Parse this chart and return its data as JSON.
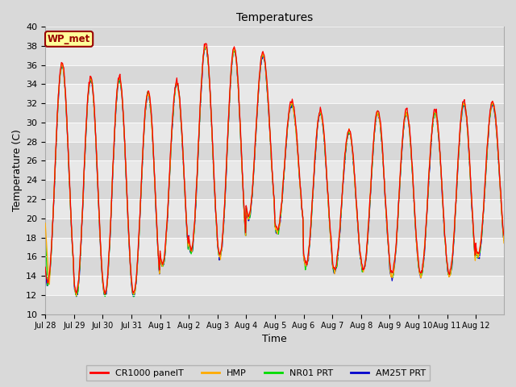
{
  "title": "Temperatures",
  "xlabel": "Time",
  "ylabel": "Temperature (C)",
  "ylim": [
    10,
    40
  ],
  "yticks": [
    10,
    12,
    14,
    16,
    18,
    20,
    22,
    24,
    26,
    28,
    30,
    32,
    34,
    36,
    38,
    40
  ],
  "bg_color": "#d9d9d9",
  "plot_bg": "#e8e8e8",
  "legend_labels": [
    "CR1000 panelT",
    "HMP",
    "NR01 PRT",
    "AM25T PRT"
  ],
  "legend_colors": [
    "#ff0000",
    "#ffaa00",
    "#00dd00",
    "#0000cc"
  ],
  "wp_met_label": "WP_met",
  "wp_met_bg": "#ffff99",
  "wp_met_border": "#990000",
  "x_tick_labels": [
    "Jul 28",
    "Jul 29",
    "Jul 30",
    "Jul 31",
    "Aug 1",
    "Aug 2",
    "Aug 3",
    "Aug 4",
    "Aug 5",
    "Aug 6",
    "Aug 7",
    "Aug 8",
    "Aug 9",
    "Aug 10",
    "Aug 11",
    "Aug 12"
  ],
  "peaks": [
    36.0,
    34.5,
    34.5,
    33.0,
    34.0,
    38.0,
    37.5,
    37.0,
    32.0,
    31.0,
    29.0,
    31.0,
    31.0,
    31.0,
    32.0,
    32.0
  ],
  "troughs": [
    13.0,
    12.0,
    12.0,
    12.0,
    15.0,
    16.5,
    16.0,
    20.0,
    18.5,
    15.0,
    14.5,
    14.5,
    14.0,
    14.0,
    14.0,
    16.0
  ],
  "n_per_day": 48,
  "n_days": 16,
  "hmp_day1_start": [
    19.5,
    18.5,
    17.5,
    16.5,
    15.5,
    14.5,
    13.5,
    13.0
  ]
}
